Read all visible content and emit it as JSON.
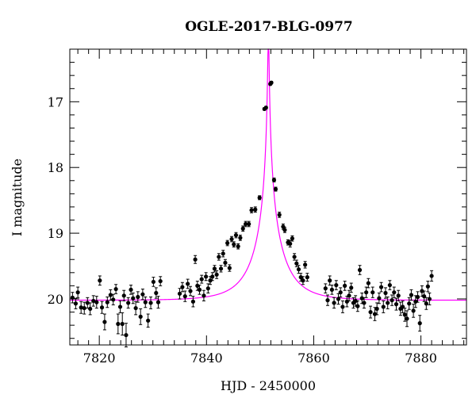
{
  "chart_data": {
    "type": "scatter",
    "title": "OGLE-2017-BLG-0977",
    "xlabel": "HJD - 2450000",
    "ylabel": "I magnitude",
    "xlim": [
      7814.5,
      7888.5
    ],
    "ylim": [
      20.7,
      16.2
    ],
    "y_inverted": true,
    "x_ticks": [
      7820,
      7840,
      7860,
      7880
    ],
    "x_tick_labels": [
      "7820",
      "7840",
      "7860",
      "7880"
    ],
    "y_ticks": [
      17,
      18,
      19,
      20
    ],
    "y_tick_labels": [
      "17",
      "18",
      "19",
      "20"
    ],
    "x_minor_step": 2,
    "y_minor_step": 0.2,
    "grid": false,
    "colors": {
      "model": "#ff00ff",
      "points": "#000000"
    },
    "model": {
      "name": "",
      "t0": 7851.55,
      "tE": 6.0,
      "u0": 0.017,
      "I_source": 20.02,
      "blending_fraction": 0.73
    },
    "series": [
      {
        "name": "",
        "points": [
          [
            7815.0,
            19.98,
            0.08
          ],
          [
            7815.6,
            20.07,
            0.08
          ],
          [
            7816.0,
            19.9,
            0.08
          ],
          [
            7816.6,
            20.13,
            0.09
          ],
          [
            7817.2,
            20.14,
            0.09
          ],
          [
            7817.8,
            20.06,
            0.08
          ],
          [
            7818.3,
            20.15,
            0.09
          ],
          [
            7818.9,
            20.03,
            0.08
          ],
          [
            7819.5,
            20.05,
            0.09
          ],
          [
            7820.1,
            19.72,
            0.07
          ],
          [
            7820.5,
            20.13,
            0.09
          ],
          [
            7821.0,
            20.35,
            0.12
          ],
          [
            7821.5,
            20.05,
            0.08
          ],
          [
            7822.1,
            19.94,
            0.08
          ],
          [
            7822.6,
            20.01,
            0.08
          ],
          [
            7823.1,
            19.85,
            0.07
          ],
          [
            7823.5,
            20.38,
            0.15
          ],
          [
            7823.9,
            20.12,
            0.09
          ],
          [
            7824.3,
            20.38,
            0.17
          ],
          [
            7824.6,
            19.95,
            0.08
          ],
          [
            7825.0,
            20.55,
            0.18
          ],
          [
            7825.4,
            20.06,
            0.08
          ],
          [
            7825.9,
            19.86,
            0.07
          ],
          [
            7826.3,
            19.99,
            0.08
          ],
          [
            7826.8,
            20.14,
            0.1
          ],
          [
            7827.2,
            19.97,
            0.08
          ],
          [
            7827.7,
            20.27,
            0.12
          ],
          [
            7828.1,
            19.93,
            0.08
          ],
          [
            7828.6,
            20.05,
            0.08
          ],
          [
            7829.1,
            20.33,
            0.1
          ],
          [
            7829.6,
            20.06,
            0.09
          ],
          [
            7830.1,
            19.74,
            0.07
          ],
          [
            7830.6,
            19.91,
            0.08
          ],
          [
            7831.0,
            20.05,
            0.09
          ],
          [
            7831.4,
            19.73,
            0.07
          ],
          [
            7835.0,
            19.92,
            0.08
          ],
          [
            7835.5,
            19.82,
            0.07
          ],
          [
            7836.0,
            19.96,
            0.08
          ],
          [
            7836.5,
            19.77,
            0.07
          ],
          [
            7837.0,
            19.88,
            0.07
          ],
          [
            7837.5,
            20.04,
            0.08
          ],
          [
            7837.9,
            19.4,
            0.06
          ],
          [
            7838.3,
            19.8,
            0.07
          ],
          [
            7838.7,
            19.86,
            0.07
          ],
          [
            7839.1,
            19.7,
            0.06
          ],
          [
            7839.5,
            19.95,
            0.08
          ],
          [
            7839.9,
            19.66,
            0.06
          ],
          [
            7840.3,
            19.84,
            0.07
          ],
          [
            7840.7,
            19.72,
            0.06
          ],
          [
            7841.1,
            19.66,
            0.06
          ],
          [
            7841.5,
            19.54,
            0.05
          ],
          [
            7841.9,
            19.63,
            0.06
          ],
          [
            7842.3,
            19.36,
            0.05
          ],
          [
            7842.7,
            19.54,
            0.05
          ],
          [
            7843.1,
            19.31,
            0.05
          ],
          [
            7843.5,
            19.45,
            0.05
          ],
          [
            7843.9,
            19.15,
            0.04
          ],
          [
            7844.3,
            19.53,
            0.05
          ],
          [
            7844.7,
            19.09,
            0.04
          ],
          [
            7845.1,
            19.17,
            0.04
          ],
          [
            7845.5,
            19.03,
            0.04
          ],
          [
            7845.9,
            19.2,
            0.04
          ],
          [
            7846.3,
            19.07,
            0.04
          ],
          [
            7846.8,
            18.93,
            0.04
          ],
          [
            7847.3,
            18.86,
            0.04
          ],
          [
            7847.9,
            18.86,
            0.04
          ],
          [
            7848.4,
            18.65,
            0.04
          ],
          [
            7849.1,
            18.64,
            0.04
          ],
          [
            7849.9,
            18.46,
            0.03
          ],
          [
            7850.8,
            17.11,
            0.02
          ],
          [
            7851.1,
            17.09,
            0.02
          ],
          [
            7851.9,
            16.73,
            0.02
          ],
          [
            7852.1,
            16.71,
            0.02
          ],
          [
            7852.6,
            18.19,
            0.03
          ],
          [
            7852.9,
            18.33,
            0.03
          ],
          [
            7853.6,
            18.72,
            0.04
          ],
          [
            7854.3,
            18.9,
            0.04
          ],
          [
            7854.6,
            18.95,
            0.04
          ],
          [
            7855.2,
            19.14,
            0.04
          ],
          [
            7855.6,
            19.16,
            0.05
          ],
          [
            7856.0,
            19.08,
            0.04
          ],
          [
            7856.4,
            19.36,
            0.05
          ],
          [
            7856.8,
            19.46,
            0.05
          ],
          [
            7857.2,
            19.55,
            0.06
          ],
          [
            7857.6,
            19.67,
            0.06
          ],
          [
            7858.0,
            19.72,
            0.06
          ],
          [
            7858.4,
            19.48,
            0.05
          ],
          [
            7858.8,
            19.67,
            0.06
          ],
          [
            7862.2,
            19.84,
            0.07
          ],
          [
            7862.6,
            20.02,
            0.08
          ],
          [
            7863.0,
            19.72,
            0.07
          ],
          [
            7863.4,
            19.86,
            0.07
          ],
          [
            7863.8,
            20.06,
            0.08
          ],
          [
            7864.2,
            19.79,
            0.07
          ],
          [
            7864.6,
            20.0,
            0.08
          ],
          [
            7865.0,
            19.9,
            0.07
          ],
          [
            7865.4,
            20.12,
            0.09
          ],
          [
            7865.8,
            19.8,
            0.07
          ],
          [
            7866.2,
            20.04,
            0.08
          ],
          [
            7866.6,
            19.95,
            0.08
          ],
          [
            7867.0,
            19.83,
            0.07
          ],
          [
            7867.4,
            20.06,
            0.08
          ],
          [
            7867.8,
            20.03,
            0.08
          ],
          [
            7868.2,
            20.11,
            0.08
          ],
          [
            7868.6,
            19.56,
            0.07
          ],
          [
            7869.0,
            19.99,
            0.08
          ],
          [
            7869.4,
            20.06,
            0.08
          ],
          [
            7869.8,
            19.9,
            0.08
          ],
          [
            7870.2,
            19.76,
            0.07
          ],
          [
            7870.6,
            20.2,
            0.09
          ],
          [
            7871.0,
            19.9,
            0.08
          ],
          [
            7871.4,
            20.23,
            0.1
          ],
          [
            7871.8,
            20.15,
            0.09
          ],
          [
            7872.2,
            19.99,
            0.08
          ],
          [
            7872.6,
            19.82,
            0.07
          ],
          [
            7873.0,
            20.12,
            0.09
          ],
          [
            7873.4,
            19.91,
            0.08
          ],
          [
            7873.8,
            20.06,
            0.09
          ],
          [
            7874.2,
            19.79,
            0.07
          ],
          [
            7874.6,
            20.02,
            0.08
          ],
          [
            7875.0,
            19.9,
            0.08
          ],
          [
            7875.4,
            20.08,
            0.09
          ],
          [
            7875.8,
            19.95,
            0.08
          ],
          [
            7876.2,
            20.15,
            0.1
          ],
          [
            7876.6,
            20.12,
            0.09
          ],
          [
            7877.0,
            20.24,
            0.1
          ],
          [
            7877.4,
            20.3,
            0.12
          ],
          [
            7877.8,
            20.07,
            0.09
          ],
          [
            7878.2,
            19.94,
            0.08
          ],
          [
            7878.6,
            20.18,
            0.1
          ],
          [
            7879.0,
            20.04,
            0.09
          ],
          [
            7879.4,
            19.97,
            0.08
          ],
          [
            7879.8,
            20.37,
            0.12
          ],
          [
            7880.2,
            19.88,
            0.08
          ],
          [
            7880.6,
            19.96,
            0.08
          ],
          [
            7881.0,
            20.07,
            0.09
          ],
          [
            7881.3,
            19.81,
            0.08
          ],
          [
            7881.6,
            20.0,
            0.09
          ],
          [
            7882.0,
            19.65,
            0.08
          ]
        ]
      }
    ]
  }
}
